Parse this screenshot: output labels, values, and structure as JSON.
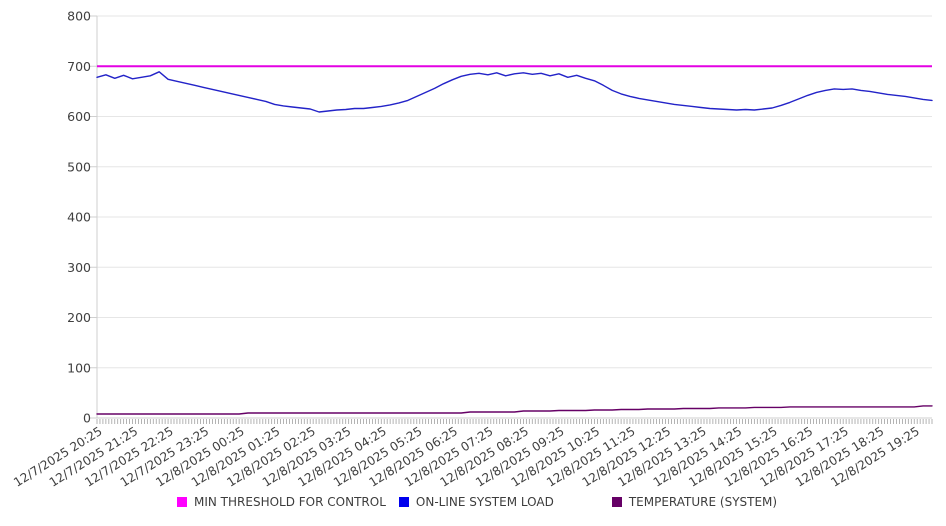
{
  "colors": {
    "background": "#ffffff",
    "grid": "#e6e6e6",
    "axis": "#cfcfcf",
    "tick": "#9a9a9a",
    "label": "#404040",
    "threshold_magenta": "#E400E4",
    "load_blue": "#2323C8",
    "temperature_purple": "#660066"
  },
  "legend": {
    "items": [
      {
        "label": "MIN THRESHOLD FOR CONTROL",
        "color": "#FF00FF"
      },
      {
        "label": "ON-LINE SYSTEM LOAD",
        "color": "#0000EE"
      },
      {
        "label": "TEMPERATURE (SYSTEM)",
        "color": "#660066"
      }
    ]
  },
  "chart_data": {
    "type": "line",
    "title": "",
    "xlabel": "",
    "ylabel": "",
    "ylim": [
      0,
      800
    ],
    "y_ticks": [
      0,
      100,
      200,
      300,
      400,
      500,
      600,
      700,
      800
    ],
    "grid": true,
    "legend_position": "bottom",
    "points_per_series": 95,
    "minutes_per_point": 15,
    "x_label_every_n_points": 4,
    "x_labels": [
      "12/7/2025 20:25",
      "12/7/2025 21:25",
      "12/7/2025 22:25",
      "12/7/2025 23:25",
      "12/8/2025 00:25",
      "12/8/2025 01:25",
      "12/8/2025 02:25",
      "12/8/2025 03:25",
      "12/8/2025 04:25",
      "12/8/2025 05:25",
      "12/8/2025 06:25",
      "12/8/2025 07:25",
      "12/8/2025 08:25",
      "12/8/2025 09:25",
      "12/8/2025 10:25",
      "12/8/2025 11:25",
      "12/8/2025 12:25",
      "12/8/2025 13:25",
      "12/8/2025 14:25",
      "12/8/2025 15:25",
      "12/8/2025 16:25",
      "12/8/2025 17:25",
      "12/8/2025 18:25",
      "12/8/2025 19:25"
    ],
    "series": [
      {
        "name": "MIN THRESHOLD FOR CONTROL",
        "kind": "threshold",
        "color": "#E400E4",
        "value": 700
      },
      {
        "name": "ON-LINE SYSTEM LOAD",
        "kind": "line",
        "color": "#2323C8",
        "values": [
          678,
          683,
          676,
          682,
          675,
          678,
          681,
          689,
          674,
          670,
          666,
          662,
          658,
          654,
          650,
          646,
          642,
          638,
          634,
          630,
          624,
          621,
          619,
          617,
          615,
          609,
          611,
          613,
          614,
          616,
          616,
          618,
          620,
          623,
          627,
          632,
          640,
          648,
          656,
          665,
          673,
          680,
          684,
          686,
          683,
          687,
          681,
          685,
          687,
          684,
          686,
          681,
          685,
          678,
          682,
          676,
          671,
          662,
          652,
          645,
          640,
          636,
          633,
          630,
          627,
          624,
          622,
          620,
          618,
          616,
          615,
          614,
          613,
          614,
          613,
          615,
          617,
          622,
          628,
          635,
          642,
          648,
          652,
          655,
          654,
          655,
          652,
          650,
          647,
          644,
          642,
          640,
          637,
          634,
          632
        ]
      },
      {
        "name": "TEMPERATURE (SYSTEM)",
        "kind": "line",
        "color": "#660066",
        "values": [
          8,
          8,
          8,
          8,
          8,
          8,
          8,
          8,
          8,
          8,
          8,
          8,
          8,
          8,
          8,
          8,
          8,
          10,
          10,
          10,
          10,
          10,
          10,
          10,
          10,
          10,
          10,
          10,
          10,
          10,
          10,
          10,
          10,
          10,
          10,
          10,
          10,
          10,
          10,
          10,
          10,
          10,
          12,
          12,
          12,
          12,
          12,
          12,
          14,
          14,
          14,
          14,
          15,
          15,
          15,
          15,
          16,
          16,
          16,
          17,
          17,
          17,
          18,
          18,
          18,
          18,
          19,
          19,
          19,
          19,
          20,
          20,
          20,
          20,
          21,
          21,
          21,
          21,
          22,
          22,
          22,
          22,
          22,
          22,
          22,
          22,
          22,
          22,
          22,
          22,
          22,
          22,
          22,
          24,
          24
        ]
      }
    ]
  }
}
